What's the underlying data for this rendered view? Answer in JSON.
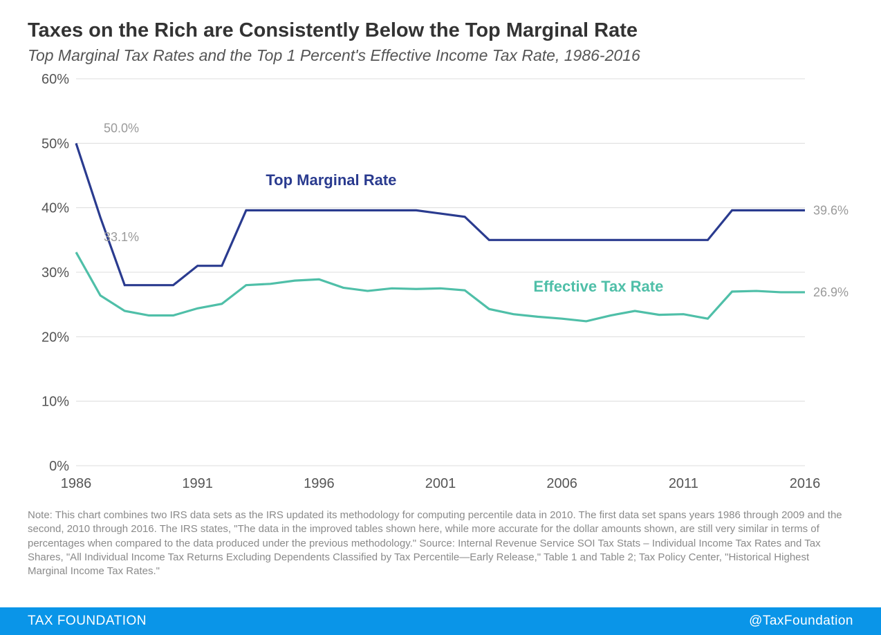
{
  "title": "Taxes on the Rich are Consistently Below the Top Marginal Rate",
  "subtitle": "Top Marginal Tax Rates and the Top 1 Percent's Effective Income Tax Rate, 1986-2016",
  "chart": {
    "type": "line",
    "background_color": "#ffffff",
    "grid_color": "#dcdcdc",
    "line_width": 3.2,
    "xlim": [
      1986,
      2016
    ],
    "ylim": [
      0,
      60
    ],
    "xtick_step": 5,
    "ytick_step": 10,
    "xticks": [
      1986,
      1991,
      1996,
      2001,
      2006,
      2011,
      2016
    ],
    "yticks": [
      0,
      10,
      20,
      30,
      40,
      50,
      60
    ],
    "ytick_format": "%",
    "years": [
      1986,
      1987,
      1988,
      1989,
      1990,
      1991,
      1992,
      1993,
      1994,
      1995,
      1996,
      1997,
      1998,
      1999,
      2000,
      2001,
      2002,
      2003,
      2004,
      2005,
      2006,
      2007,
      2008,
      2009,
      2010,
      2011,
      2012,
      2013,
      2014,
      2015,
      2016
    ],
    "series": [
      {
        "name": "Top Marginal Rate",
        "color": "#2a3b8f",
        "label_x": 1996.5,
        "label_y": 43.5,
        "values": [
          50.0,
          38.5,
          28.0,
          28.0,
          28.0,
          31.0,
          31.0,
          39.6,
          39.6,
          39.6,
          39.6,
          39.6,
          39.6,
          39.6,
          39.6,
          39.1,
          38.6,
          35.0,
          35.0,
          35.0,
          35.0,
          35.0,
          35.0,
          35.0,
          35.0,
          35.0,
          35.0,
          39.6,
          39.6,
          39.6,
          39.6
        ],
        "start_label": "50.0%",
        "end_label": "39.6%"
      },
      {
        "name": "Effective Tax Rate",
        "color": "#4fbfa8",
        "label_x": 2007.5,
        "label_y": 27.0,
        "values": [
          33.1,
          26.4,
          24.0,
          23.3,
          23.3,
          24.4,
          25.1,
          28.0,
          28.2,
          28.7,
          28.9,
          27.6,
          27.1,
          27.5,
          27.4,
          27.5,
          27.2,
          24.3,
          23.5,
          23.1,
          22.8,
          22.4,
          23.3,
          24.0,
          23.4,
          23.5,
          22.8,
          27.0,
          27.1,
          26.9,
          26.9
        ],
        "start_label": "33.1%",
        "end_label": "26.9%"
      }
    ],
    "label_fontsize": 22,
    "tick_fontsize": 20,
    "datalabel_fontsize": 18,
    "datalabel_color": "#9a9a9a"
  },
  "note": "Note: This chart combines two IRS data sets as the IRS updated its methodology for computing percentile data in 2010. The first data set spans years 1986 through 2009 and the second, 2010 through 2016. The IRS states, \"The data in the improved tables shown here, while more accurate for the dollar amounts shown, are still very similar in terms of percentages when compared to the data produced under the previous methodology.\" Source: Internal Revenue Service SOI Tax Stats – Individual Income Tax Rates and Tax Shares, \"All Individual Income Tax Returns Excluding Dependents Classified by Tax Percentile—Early Release,\" Table 1 and Table 2; Tax Policy Center, \"Historical Highest Marginal Income Tax Rates.\"",
  "footer": {
    "left": "TAX FOUNDATION",
    "right": "@TaxFoundation",
    "background_color": "#0a95e8",
    "text_color": "#ffffff"
  }
}
